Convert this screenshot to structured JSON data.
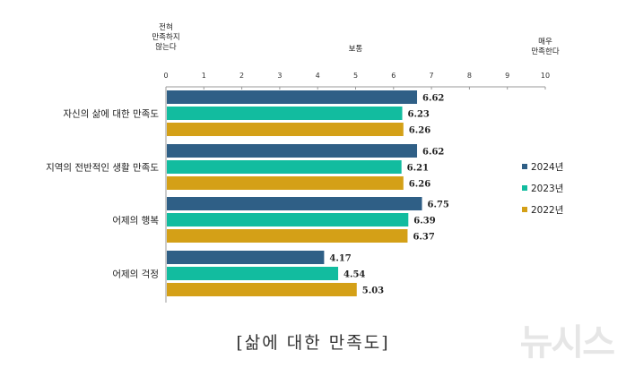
{
  "chart_data": {
    "type": "bar",
    "orientation": "horizontal",
    "categories": [
      "자신의 삶에 대한 만족도",
      "지역의 전반적인 생활 만족도",
      "어제의 행복",
      "어제의 걱정"
    ],
    "series": [
      {
        "name": "2024년",
        "color": "#2f5f86",
        "values": [
          6.62,
          6.62,
          6.75,
          4.17
        ]
      },
      {
        "name": "2023년",
        "color": "#12bc9f",
        "values": [
          6.23,
          6.21,
          6.39,
          4.54
        ]
      },
      {
        "name": "2022년",
        "color": "#d4a017",
        "values": [
          6.26,
          6.26,
          6.37,
          5.03
        ]
      }
    ],
    "xlim": [
      0,
      10
    ],
    "xticks": [
      "0",
      "1",
      "2",
      "3",
      "4",
      "5",
      "6",
      "7",
      "8",
      "9",
      "10"
    ],
    "scale_labels": {
      "low": "전혀\n만족하지\n않는다",
      "mid": "보통",
      "high": "매우\n만족한다"
    },
    "legend_position": "right",
    "grid": false
  },
  "caption": "[삶에 대한 만족도]",
  "watermark": "뉴시스"
}
